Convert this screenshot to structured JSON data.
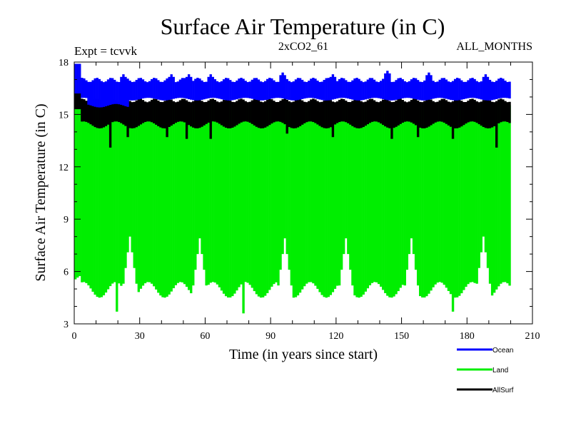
{
  "chart_data": {
    "type": "line",
    "title": "Surface Air Temperature (in C)",
    "subtitle_left": "Expt = tcvvk",
    "subtitle_center": "2xCO2_61",
    "subtitle_right": "ALL_MONTHS",
    "xlabel": "Time (in years since start)",
    "ylabel": "Surface Air Temperature (in C)",
    "xlim": [
      0,
      210
    ],
    "ylim": [
      3,
      18
    ],
    "x_ticks": [
      0,
      30,
      60,
      90,
      120,
      150,
      180,
      210
    ],
    "y_ticks": [
      3,
      6,
      9,
      12,
      15,
      18
    ],
    "x_extent": [
      0,
      199
    ],
    "grid": false,
    "legend_position": "bottom-right",
    "series": [
      {
        "name": "Ocean",
        "color": "#0000ff",
        "annual_range_typical": [
          15.8,
          17.1
        ],
        "spike_years": [
          0,
          22,
          44,
          52,
          62,
          95,
          118,
          143,
          162,
          188
        ],
        "spike_max": [
          17.9,
          17.3,
          17.3,
          17.3,
          17.3,
          17.4,
          17.3,
          17.5,
          17.4,
          17.3
        ],
        "min_values": [
          15.4,
          15.5,
          15.5
        ]
      },
      {
        "name": "Land",
        "color": "#00ee00",
        "annual_range_typical": [
          4.5,
          15.8
        ],
        "peak_max": 16.4,
        "min_values": [
          3.7,
          3.6,
          3.7
        ],
        "min_years": [
          19,
          77,
          173
        ],
        "high_min_years": [
          25,
          57,
          96,
          124,
          154,
          187
        ],
        "high_min_values": [
          8.0,
          7.9,
          7.9,
          7.9,
          7.9,
          8.0
        ]
      },
      {
        "name": "AllSurf",
        "color": "#000000",
        "annual_range_typical": [
          14.2,
          15.9
        ],
        "dip_years": [
          16,
          24,
          42,
          51,
          62,
          97,
          118,
          145,
          157,
          173,
          193
        ],
        "dip_values": [
          13.1,
          13.7,
          13.7,
          13.6,
          13.6,
          13.9,
          13.7,
          13.6,
          13.7,
          13.6,
          13.1
        ],
        "max_value": 16.3
      }
    ]
  }
}
